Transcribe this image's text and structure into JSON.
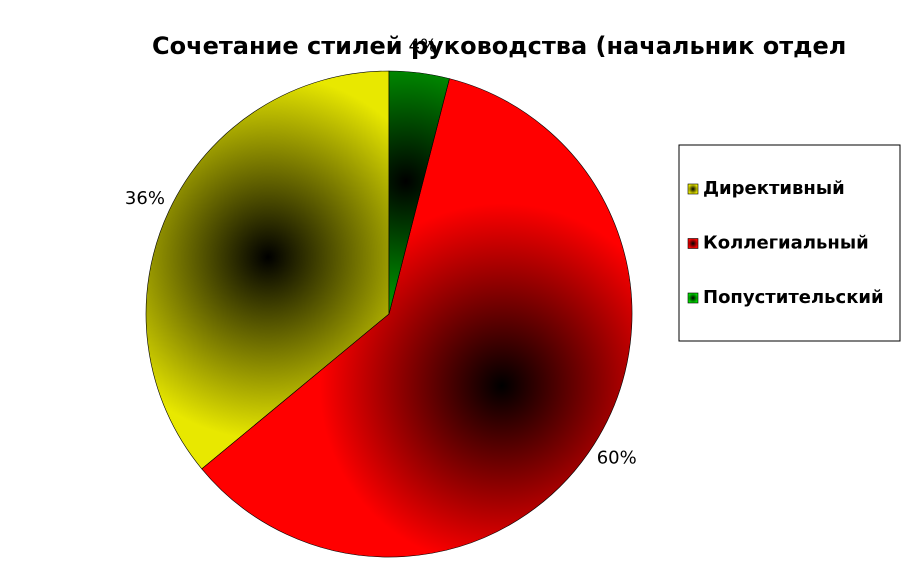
{
  "chart_data": {
    "type": "pie",
    "title": "Сочетание стилей руководства (начальник отдел",
    "categories": [
      "Директивный",
      "Коллегиальный",
      "Попустительский"
    ],
    "values": [
      36,
      60,
      4
    ],
    "value_labels": [
      "36%",
      "60%",
      "4%"
    ],
    "colors": [
      "#e8e800",
      "#ff0000",
      "#00dd00"
    ],
    "legend": "right"
  }
}
